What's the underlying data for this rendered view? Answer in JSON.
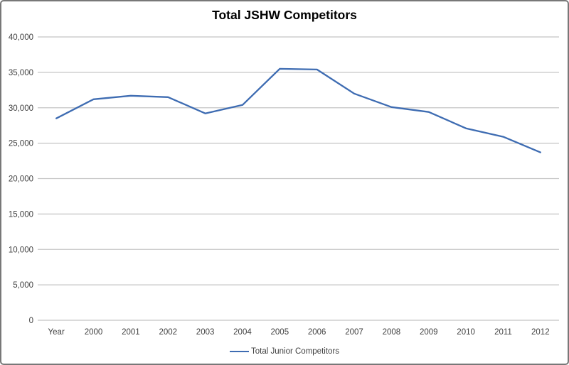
{
  "chart_data": {
    "type": "line",
    "title": "Total JSHW Competitors",
    "categories": [
      "Year",
      "2000",
      "2001",
      "2002",
      "2003",
      "2004",
      "2005",
      "2006",
      "2007",
      "2008",
      "2009",
      "2010",
      "2011",
      "2012"
    ],
    "series": [
      {
        "name": "Total Junior Competitors",
        "color": "#3E6CB2",
        "values": [
          28500,
          31200,
          31700,
          31500,
          29200,
          30400,
          35500,
          35400,
          32000,
          30100,
          29400,
          27100,
          25900,
          23700
        ]
      }
    ],
    "ylim": [
      0,
      40000
    ],
    "ytick_step": 5000,
    "ytick_labels": [
      "0",
      "5,000",
      "10,000",
      "15,000",
      "20,000",
      "25,000",
      "30,000",
      "35,000",
      "40,000"
    ],
    "grid": "horizontal",
    "gridline_color": "#c4c4c4",
    "axis_label_color": "#3f3f3f",
    "legend_position": "bottom",
    "plot_background": "#ffffff"
  }
}
